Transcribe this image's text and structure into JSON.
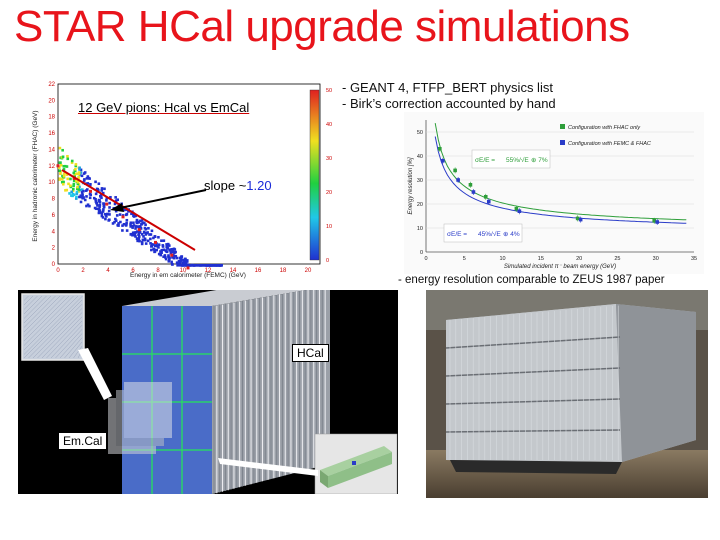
{
  "slide": {
    "title": "STAR HCal upgrade simulations",
    "notes": {
      "line1": "- GEANT 4, FTFP_BERT physics list",
      "line2": "- Birk’s correction accounted by hand",
      "resolution": "- energy resolution  comparable to ZEUS 1987 paper"
    }
  },
  "left_plot": {
    "title": "12 GeV pions: Hcal vs EmCal",
    "slope_prefix": "slope ~",
    "slope_value": "1.20",
    "xlabel": "Energy in em calorimeter (FEMC) (GeV)",
    "ylabel": "Energy in hadronic calorimeter (FHAC) (GeV)",
    "x_ticks": [
      "0",
      "2",
      "4",
      "6",
      "8",
      "10",
      "12",
      "14",
      "16",
      "18",
      "20"
    ],
    "y_ticks": [
      "0",
      "2",
      "4",
      "6",
      "8",
      "10",
      "12",
      "14",
      "16",
      "18",
      "20",
      "22"
    ],
    "z_ticks": [
      "0",
      "10",
      "20",
      "30",
      "40",
      "50"
    ]
  },
  "chart_data": {
    "type": "scatter",
    "title": "",
    "xlabel": "Simulated incident  π⁻ beam energy (GeV)",
    "ylabel": "Energy resolution [%]",
    "xlim": [
      0,
      35
    ],
    "ylim": [
      0,
      55
    ],
    "x_ticks": [
      "0",
      "5",
      "10",
      "15",
      "20",
      "25",
      "30",
      "35"
    ],
    "y_ticks": [
      "0",
      "10",
      "20",
      "30",
      "40",
      "50"
    ],
    "legend_position": "top-right",
    "series": [
      {
        "name": "Configuration with FHAC only",
        "color": "#2e9e3a",
        "x": [
          2,
          4,
          6,
          8,
          12,
          20,
          30
        ],
        "y": [
          43,
          34,
          28,
          23,
          18,
          14,
          13
        ]
      },
      {
        "name": "Configuration with FEMC & FHAC",
        "color": "#2a3cc8",
        "x": [
          2,
          4,
          6,
          8,
          12,
          20,
          30
        ],
        "y": [
          38,
          30,
          25,
          21,
          17,
          13.5,
          12.5
        ]
      }
    ],
    "fit_upper": {
      "prefix": "σE/E =",
      "stochastic": "55%/√E",
      "constant": "⊕ 7%"
    },
    "fit_lower": {
      "prefix": "σE/E =",
      "stochastic": "45%/√E",
      "constant": "⊕ 4%"
    }
  },
  "detector": {
    "hcal_label": "HCal",
    "emcal_label": "Em.Cal"
  },
  "colors": {
    "title_red": "#e8141b",
    "axis_red": "#cc0000",
    "slope_blue": "#1a2ad8",
    "module_blue": "#4a6cc8"
  }
}
